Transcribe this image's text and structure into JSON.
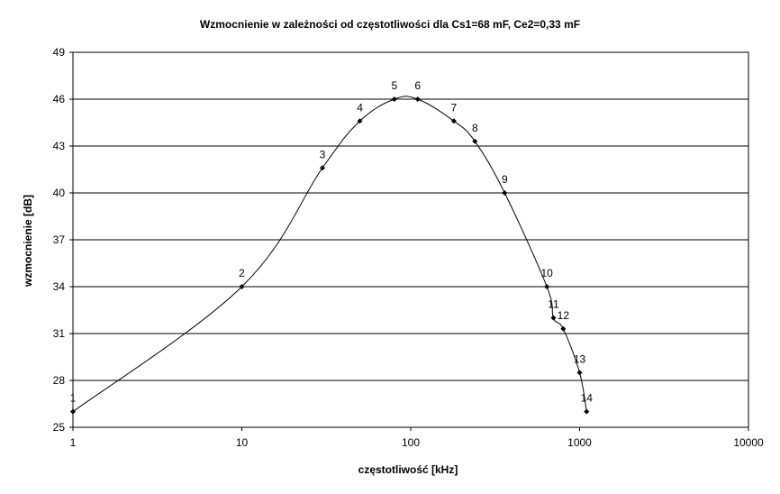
{
  "chart_data": {
    "type": "line",
    "title": "Wzmocnienie w zależności od częstotliwości dla Cs1=68 mF, Ce2=0,33 mF",
    "xlabel": "częstotliwość [kHz]",
    "ylabel": "wzmocnienie [dB]",
    "x_scale": "log",
    "xlim": [
      1,
      10000
    ],
    "ylim": [
      25,
      49
    ],
    "x_ticks": [
      "1",
      "10",
      "100",
      "1000",
      "10000"
    ],
    "y_ticks": [
      "25",
      "28",
      "31",
      "34",
      "37",
      "40",
      "43",
      "46",
      "49"
    ],
    "grid": "horizontal",
    "legend": "none",
    "line_color": "#000000",
    "marker": "diamond",
    "series": [
      {
        "points": [
          {
            "label": "1",
            "x": 1,
            "y": 26.0
          },
          {
            "label": "2",
            "x": 10,
            "y": 34.0
          },
          {
            "label": "3",
            "x": 30,
            "y": 41.6
          },
          {
            "label": "4",
            "x": 50,
            "y": 44.6
          },
          {
            "label": "5",
            "x": 80,
            "y": 46.0
          },
          {
            "label": "6",
            "x": 110,
            "y": 46.0
          },
          {
            "label": "7",
            "x": 180,
            "y": 44.6
          },
          {
            "label": "8",
            "x": 240,
            "y": 43.3
          },
          {
            "label": "9",
            "x": 360,
            "y": 40.0
          },
          {
            "label": "10",
            "x": 640,
            "y": 34.0
          },
          {
            "label": "11",
            "x": 700,
            "y": 32.0
          },
          {
            "label": "12",
            "x": 800,
            "y": 31.3
          },
          {
            "label": "13",
            "x": 1000,
            "y": 28.5
          },
          {
            "label": "14",
            "x": 1100,
            "y": 26.0
          }
        ]
      }
    ]
  }
}
